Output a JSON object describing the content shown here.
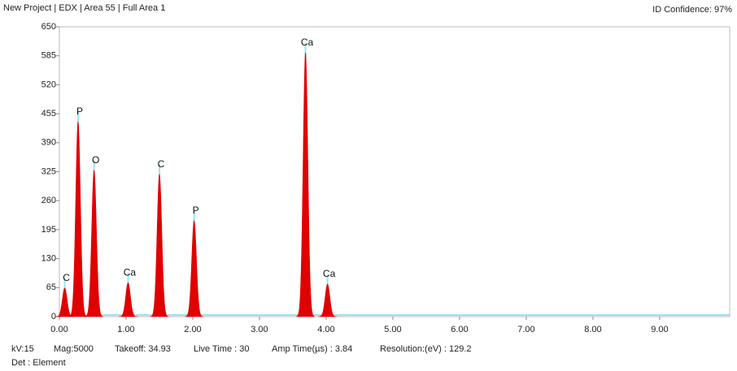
{
  "chart_data": {
    "type": "spectrum",
    "title": "New Project | EDX | Area 55 | Full Area 1",
    "subtitle": "ID Confidence: 97%",
    "color": "#e00000",
    "xlim": [
      0,
      10.05
    ],
    "ylim": [
      0,
      650
    ],
    "xticks": [
      {
        "value": 0,
        "label": "0.00"
      },
      {
        "value": 1,
        "label": "1.00"
      },
      {
        "value": 2,
        "label": "2.00"
      },
      {
        "value": 3,
        "label": "3.00"
      },
      {
        "value": 4,
        "label": "4.00"
      },
      {
        "value": 5,
        "label": "5.00"
      },
      {
        "value": 6,
        "label": "6.00"
      },
      {
        "value": 7,
        "label": "7.00"
      },
      {
        "value": 8,
        "label": "8.00"
      },
      {
        "value": 9,
        "label": "9.00"
      }
    ],
    "yticks": [
      0,
      65,
      130,
      195,
      260,
      325,
      390,
      455,
      520,
      585,
      650
    ],
    "peaks": {
      "labels": [
        "C",
        "P",
        "O",
        "Ca",
        "C",
        "P",
        "Ca",
        "Ca"
      ],
      "x": [
        0.08,
        0.28,
        0.52,
        1.03,
        1.5,
        2.02,
        3.69,
        4.02
      ],
      "values": [
        64,
        437,
        328,
        76,
        319,
        215,
        592,
        73
      ]
    },
    "footer": [
      "kV:15",
      "Mag:5000",
      "Takeoff: 34.93",
      "Live Time : 30",
      "Amp Time(µs) : 3.84",
      "Resolution:(eV) : 129.2",
      "Det : Element"
    ]
  }
}
